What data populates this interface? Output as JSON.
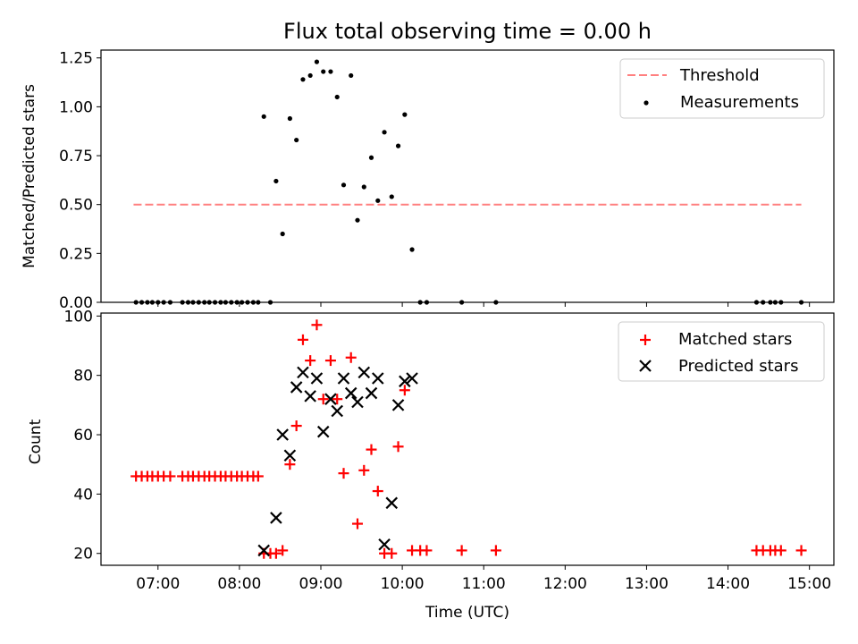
{
  "figure": {
    "title": "Flux total observing time = 0.00 h"
  },
  "chart_data": [
    {
      "type": "scatter",
      "title": "Flux total observing time = 0.00 h",
      "xlabel": "",
      "ylabel": "Matched/Predicted stars",
      "xlim": [
        6.3,
        15.3
      ],
      "ylim": [
        0.0,
        1.29
      ],
      "yticks": [
        0.0,
        0.25,
        0.5,
        0.75,
        1.0,
        1.25
      ],
      "ytick_labels": [
        "0.00",
        "0.25",
        "0.50",
        "0.75",
        "1.00",
        "1.25"
      ],
      "xticks": [
        7,
        8,
        9,
        10,
        11,
        12,
        13,
        14,
        15
      ],
      "legend_position": "top-right",
      "series": [
        {
          "name": "Threshold",
          "kind": "dashed-line",
          "color": "#ff8080",
          "x": [
            6.7,
            14.9
          ],
          "y": [
            0.5,
            0.5
          ]
        },
        {
          "name": "Measurements",
          "kind": "dot",
          "color": "#000000",
          "x": [
            6.73,
            6.8,
            6.87,
            6.93,
            7.0,
            7.07,
            7.15,
            7.3,
            7.37,
            7.43,
            7.5,
            7.57,
            7.63,
            7.7,
            7.77,
            7.83,
            7.9,
            7.97,
            8.03,
            8.1,
            8.17,
            8.23,
            8.3,
            8.38,
            8.45,
            8.53,
            8.62,
            8.7,
            8.78,
            8.87,
            8.95,
            9.03,
            9.12,
            9.2,
            9.28,
            9.37,
            9.45,
            9.53,
            9.62,
            9.7,
            9.78,
            9.87,
            9.95,
            10.03,
            10.12,
            10.22,
            10.3,
            10.73,
            11.15,
            14.35,
            14.43,
            14.52,
            14.58,
            14.65,
            14.9
          ],
          "y": [
            0,
            0,
            0,
            0,
            0,
            0,
            0,
            0,
            0,
            0,
            0,
            0,
            0,
            0,
            0,
            0,
            0,
            0,
            0,
            0,
            0,
            0,
            0.95,
            0,
            0.62,
            0.35,
            0.94,
            0.83,
            1.14,
            1.16,
            1.23,
            1.18,
            1.18,
            1.05,
            0.6,
            1.16,
            0.42,
            0.59,
            0.74,
            0.52,
            0.87,
            0.54,
            0.8,
            0.96,
            0.27,
            0,
            0,
            0,
            0,
            0,
            0,
            0,
            0,
            0,
            0
          ]
        }
      ]
    },
    {
      "type": "scatter",
      "title": "",
      "xlabel": "Time (UTC)",
      "ylabel": "Count",
      "xlim": [
        6.3,
        15.3
      ],
      "ylim": [
        16,
        101
      ],
      "yticks": [
        20,
        40,
        60,
        80,
        100
      ],
      "xticks": [
        7,
        8,
        9,
        10,
        11,
        12,
        13,
        14,
        15
      ],
      "xtick_labels": [
        "07:00",
        "08:00",
        "09:00",
        "10:00",
        "11:00",
        "12:00",
        "13:00",
        "14:00",
        "15:00"
      ],
      "legend_position": "top-right",
      "series": [
        {
          "name": "Matched stars",
          "kind": "plus",
          "color": "#ff0000",
          "x": [
            6.73,
            6.8,
            6.87,
            6.93,
            7.0,
            7.07,
            7.15,
            7.3,
            7.37,
            7.43,
            7.5,
            7.57,
            7.63,
            7.7,
            7.77,
            7.83,
            7.9,
            7.97,
            8.03,
            8.1,
            8.17,
            8.23,
            8.3,
            8.38,
            8.45,
            8.53,
            8.62,
            8.7,
            8.78,
            8.87,
            8.95,
            9.03,
            9.12,
            9.2,
            9.28,
            9.37,
            9.45,
            9.53,
            9.62,
            9.7,
            9.78,
            9.87,
            9.95,
            10.03,
            10.12,
            10.22,
            10.3,
            10.73,
            11.15,
            14.35,
            14.43,
            14.52,
            14.58,
            14.65,
            14.9
          ],
          "y": [
            46,
            46,
            46,
            46,
            46,
            46,
            46,
            46,
            46,
            46,
            46,
            46,
            46,
            46,
            46,
            46,
            46,
            46,
            46,
            46,
            46,
            46,
            20,
            20,
            20,
            21,
            50,
            63,
            92,
            85,
            97,
            72,
            85,
            72,
            47,
            86,
            30,
            48,
            55,
            41,
            20,
            20,
            56,
            75,
            21,
            21,
            21,
            21,
            21,
            21,
            21,
            21,
            21,
            21,
            21
          ]
        },
        {
          "name": "Predicted stars",
          "kind": "x",
          "color": "#000000",
          "x": [
            8.3,
            8.45,
            8.53,
            8.62,
            8.7,
            8.78,
            8.87,
            8.95,
            9.03,
            9.12,
            9.2,
            9.28,
            9.37,
            9.45,
            9.53,
            9.62,
            9.7,
            9.78,
            9.87,
            9.95,
            10.03,
            10.12
          ],
          "y": [
            21,
            32,
            60,
            53,
            76,
            81,
            73,
            79,
            61,
            72,
            68,
            79,
            74,
            71,
            81,
            74,
            79,
            23,
            37,
            70,
            78,
            79
          ]
        }
      ]
    }
  ]
}
